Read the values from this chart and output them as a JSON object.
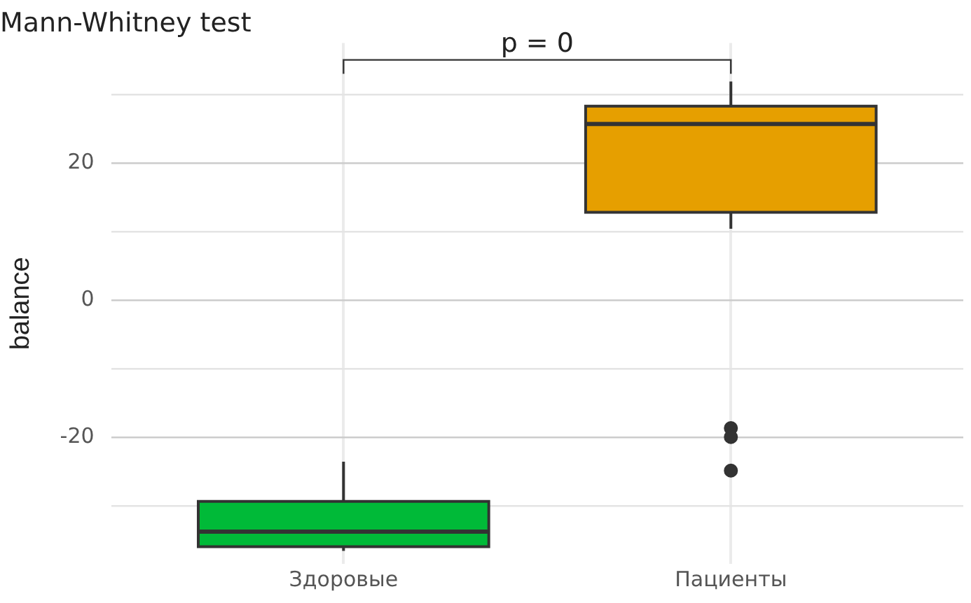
{
  "chart_data": {
    "type": "box",
    "title": "Mann-Whitney test",
    "ylabel": "balance",
    "categories": [
      "Здоровые",
      "Пациенты"
    ],
    "colors": [
      "#00ba38",
      "#e69f00"
    ],
    "boxes": [
      {
        "low": -36.6,
        "q1": -36,
        "median": -33.8,
        "q3": -29.4,
        "high": -23.6
      },
      {
        "low": 10.4,
        "q1": 12.8,
        "median": 25.7,
        "q3": 28.3,
        "high": 31.9,
        "outliers": [
          -18.7,
          -20,
          -24.9
        ]
      }
    ],
    "ylim": [
      -38.5,
      37.5
    ],
    "yticks": [
      {
        "value": -30,
        "label": null
      },
      -20,
      {
        "value": -10,
        "label": null
      },
      0,
      {
        "value": 10,
        "label": null
      },
      20,
      {
        "value": 30,
        "label": null
      }
    ],
    "grid": true,
    "legend": false,
    "annotations": [
      "p = 0"
    ]
  }
}
